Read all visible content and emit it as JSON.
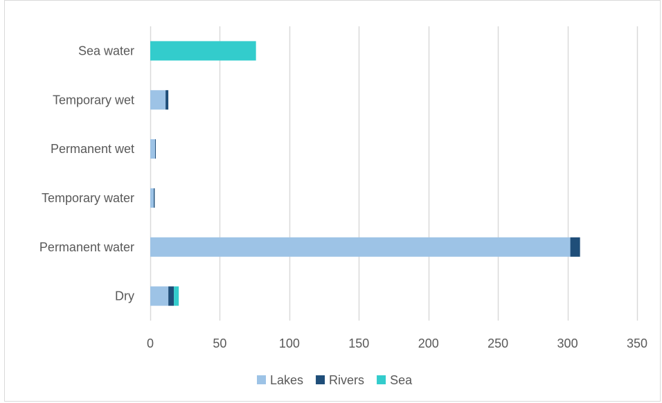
{
  "chart_data": {
    "type": "bar",
    "orientation": "horizontal",
    "stacked": true,
    "title": "",
    "xlabel": "",
    "ylabel": "",
    "categories": [
      "Dry",
      "Permanent water",
      "Temporary water",
      "Permanent wet",
      "Temporary wet",
      "Sea water"
    ],
    "series": [
      {
        "name": "Lakes",
        "color": "#9dc3e6",
        "values": [
          13,
          302,
          2.5,
          3.5,
          11,
          0
        ]
      },
      {
        "name": "Rivers",
        "color": "#1f4e79",
        "values": [
          4,
          7,
          0.7,
          0.5,
          2,
          0
        ]
      },
      {
        "name": "Sea",
        "color": "#33cccc",
        "values": [
          3.5,
          0,
          0,
          0,
          0,
          76
        ]
      }
    ],
    "xlim": [
      0,
      350
    ],
    "xticks": [
      0,
      50,
      100,
      150,
      200,
      250,
      300,
      350
    ],
    "xtick_labels": [
      "0",
      "50",
      "100",
      "150",
      "200",
      "250",
      "300",
      "350"
    ],
    "grid": "vertical",
    "legend_position": "bottom"
  }
}
